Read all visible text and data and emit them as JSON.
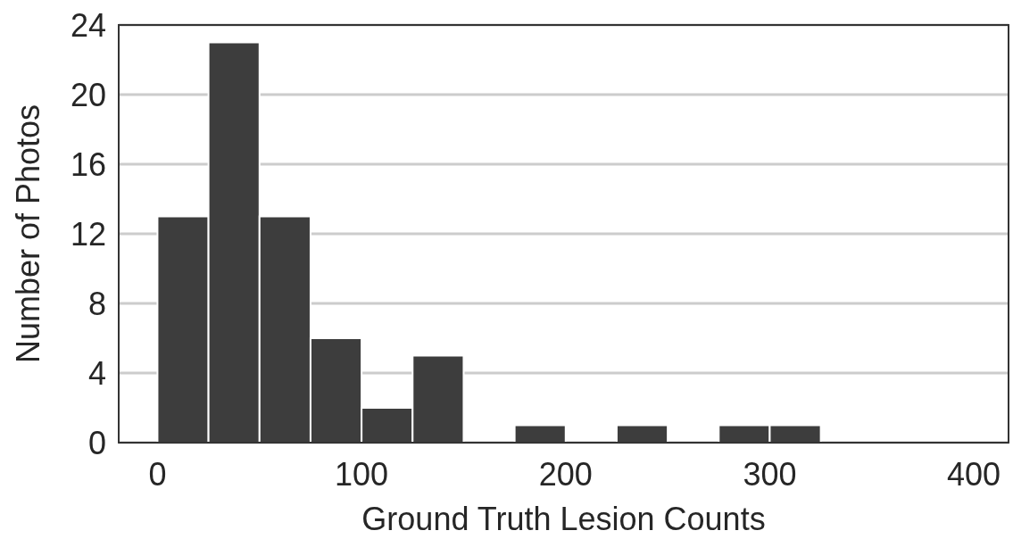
{
  "chart_data": {
    "type": "histogram",
    "xlabel": "Ground Truth Lesion Counts",
    "ylabel": "Number of Photos",
    "bins": [
      0,
      25,
      50,
      75,
      100,
      125,
      150,
      175,
      200,
      225,
      250,
      275,
      300,
      325
    ],
    "values": [
      13,
      23,
      13,
      6,
      2,
      5,
      0,
      1,
      0,
      1,
      0,
      1,
      1
    ],
    "color": "#3d3d3d",
    "xlim": [
      -19,
      417
    ],
    "xticks": [
      0,
      100,
      200,
      300,
      400
    ],
    "ylim": [
      0,
      24
    ],
    "yticks": [
      0,
      4,
      8,
      12,
      16,
      20,
      24
    ],
    "grid": "y"
  }
}
